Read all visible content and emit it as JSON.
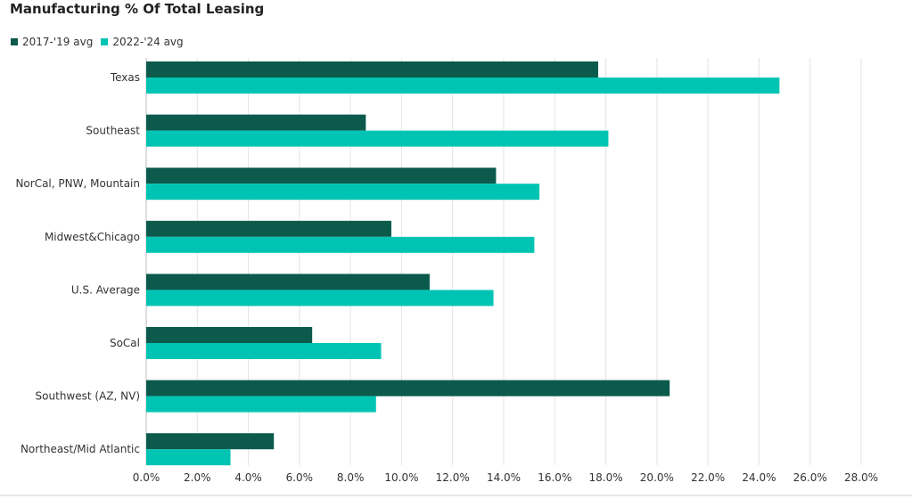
{
  "chart_data": {
    "type": "bar",
    "orientation": "horizontal",
    "title": "Manufacturing % Of Total Leasing",
    "categories": [
      "Texas",
      "Southeast",
      "NorCal, PNW, Mountain",
      "Midwest&Chicago",
      "U.S. Average",
      "SoCal",
      "Southwest (AZ, NV)",
      "Northeast/Mid Atlantic"
    ],
    "series": [
      {
        "name": "2017-'19 avg",
        "color": "#0b5a4c",
        "values": [
          17.7,
          8.6,
          13.7,
          9.6,
          11.1,
          6.5,
          20.5,
          5.0
        ]
      },
      {
        "name": "2022-'24 avg",
        "color": "#00c4b3",
        "values": [
          24.8,
          18.1,
          15.4,
          15.2,
          13.6,
          9.2,
          9.0,
          3.3
        ]
      }
    ],
    "xlim": [
      0,
      28
    ],
    "xticks": [
      "0.0%",
      "2.0%",
      "4.0%",
      "6.0%",
      "8.0%",
      "10.0%",
      "12.0%",
      "14.0%",
      "16.0%",
      "18.0%",
      "20.0%",
      "22.0%",
      "24.0%",
      "26.0%",
      "28.0%"
    ],
    "grid": true,
    "legend_position": "top-left"
  }
}
